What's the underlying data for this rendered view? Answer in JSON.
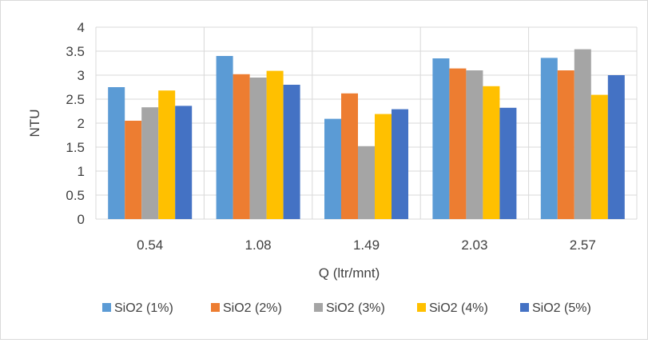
{
  "chart_data": {
    "type": "bar",
    "title": "",
    "xlabel": "Q (ltr/mnt)",
    "ylabel": "NTU",
    "ylim": [
      0,
      4
    ],
    "yticks": [
      "0",
      "0.5",
      "1",
      "1.5",
      "2",
      "2.5",
      "3",
      "3.5",
      "4"
    ],
    "grid": true,
    "legend_position": "bottom",
    "categories": [
      "0.54",
      "1.08",
      "1.49",
      "2.03",
      "2.57"
    ],
    "series": [
      {
        "name": "SiO2 (1%)",
        "color": "#5b9bd5",
        "values": [
          2.75,
          3.4,
          2.09,
          3.35,
          3.36
        ]
      },
      {
        "name": "SiO2 (2%)",
        "color": "#ed7d31",
        "values": [
          2.05,
          3.02,
          2.62,
          3.14,
          3.1
        ]
      },
      {
        "name": "SiO2 (3%)",
        "color": "#a5a5a5",
        "values": [
          2.33,
          2.95,
          1.52,
          3.1,
          3.54
        ]
      },
      {
        "name": "SiO2 (4%)",
        "color": "#ffc000",
        "values": [
          2.68,
          3.09,
          2.19,
          2.77,
          2.59
        ]
      },
      {
        "name": "SiO2 (5%)",
        "color": "#4472c4",
        "values": [
          2.36,
          2.8,
          2.29,
          2.32,
          3.0
        ]
      }
    ]
  }
}
